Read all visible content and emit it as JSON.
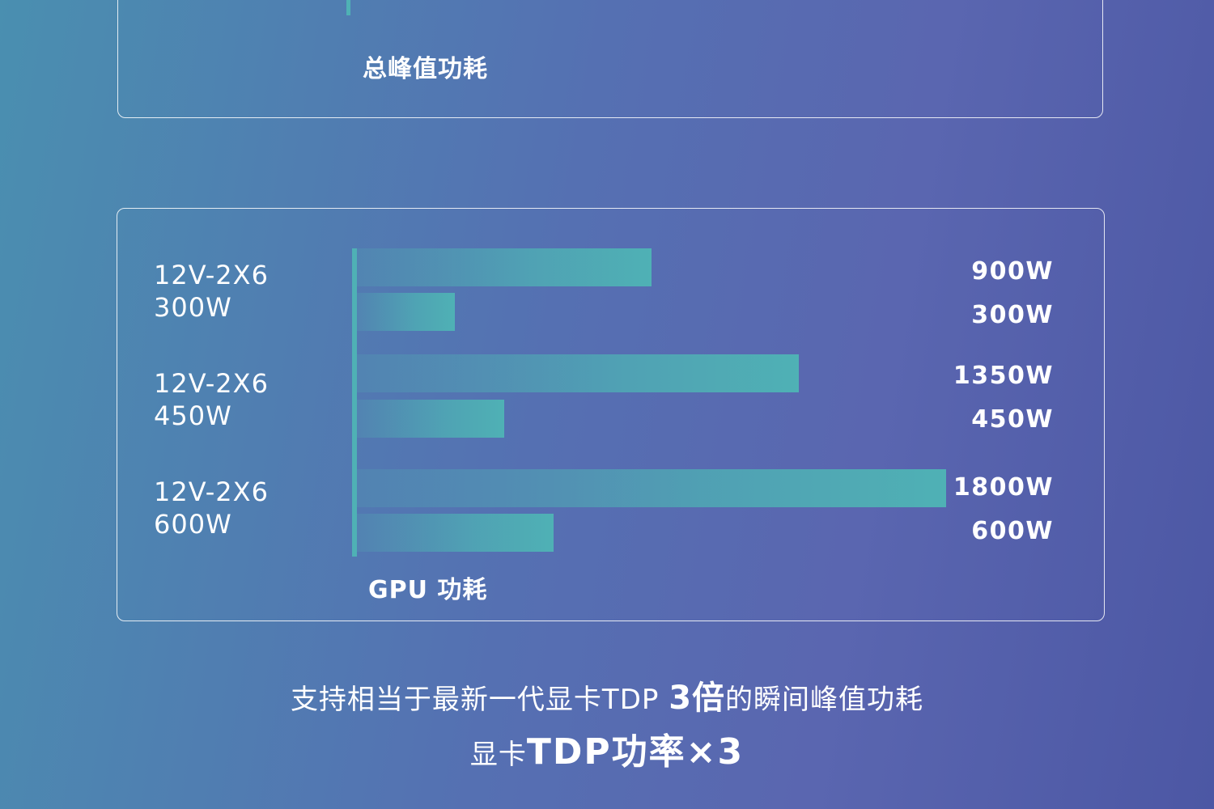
{
  "top_panel": {
    "caption": "总峰值功耗"
  },
  "chart_data": {
    "type": "bar",
    "orientation": "horizontal",
    "xlabel": "GPU 功耗",
    "xlim": [
      0,
      1800
    ],
    "unit": "W",
    "groups": [
      {
        "label_line1": "12V-2X6",
        "label_line2": "300W",
        "bars": [
          {
            "value": 900,
            "label": "900W"
          },
          {
            "value": 300,
            "label": "300W"
          }
        ]
      },
      {
        "label_line1": "12V-2X6",
        "label_line2": "450W",
        "bars": [
          {
            "value": 1350,
            "label": "1350W"
          },
          {
            "value": 450,
            "label": "450W"
          }
        ]
      },
      {
        "label_line1": "12V-2X6",
        "label_line2": "600W",
        "bars": [
          {
            "value": 1800,
            "label": "1800W"
          },
          {
            "value": 600,
            "label": "600W"
          }
        ]
      }
    ],
    "bar_color": "#4fb1b5"
  },
  "footer": {
    "line1_prefix": "支持相当于最新一代显卡TDP ",
    "line1_emphasis": "3倍",
    "line1_suffix": "的瞬间峰值功耗",
    "line2_prefix": "显卡",
    "line2_emphasis": "TDP功率×3"
  }
}
